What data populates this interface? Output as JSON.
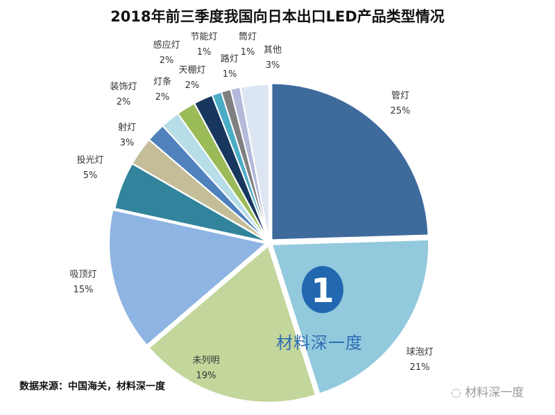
{
  "chart_data": {
    "type": "pie",
    "title": "2018年前三季度我国向日本出口LED产品类型情况",
    "start": "top",
    "direction": "clockwise",
    "slices": [
      {
        "label": "管灯",
        "value": 25,
        "text": "25%",
        "color": "#3f6a9c"
      },
      {
        "label": "球泡灯",
        "value": 21,
        "text": "21%",
        "color": "#92c9dd"
      },
      {
        "label": "未列明",
        "value": 19,
        "text": "19%",
        "color": "#c3d69b"
      },
      {
        "label": "吸顶灯",
        "value": 15,
        "text": "15%",
        "color": "#8eb4e3"
      },
      {
        "label": "投光灯",
        "value": 5,
        "text": "5%",
        "color": "#31849b"
      },
      {
        "label": "射灯",
        "value": 3,
        "text": "3%",
        "color": "#c4bd97"
      },
      {
        "label": "装饰灯",
        "value": 2,
        "text": "2%",
        "color": "#4f81bd"
      },
      {
        "label": "灯条",
        "value": 2,
        "text": "2%",
        "color": "#b7dde8"
      },
      {
        "label": "感应灯",
        "value": 2,
        "text": "2%",
        "color": "#9bbb59"
      },
      {
        "label": "天棚灯",
        "value": 2,
        "text": "2%",
        "color": "#17375e"
      },
      {
        "label": "节能灯",
        "value": 1,
        "text": "1%",
        "color": "#4bacc6"
      },
      {
        "label": "路灯",
        "value": 1,
        "text": "1%",
        "color": "#7f7f7f"
      },
      {
        "label": "筒灯",
        "value": 1,
        "text": "1%",
        "color": "#b3b9d9"
      },
      {
        "label": "其他",
        "value": 3,
        "text": "3%",
        "color": "#dce6f2"
      }
    ]
  },
  "source": "数据来源：中国海关，材料深一度",
  "watermark": "材料深一度",
  "logo_text": "1",
  "wechat_watermark": "材料深一度",
  "wechat_icon": "wechat-icon"
}
